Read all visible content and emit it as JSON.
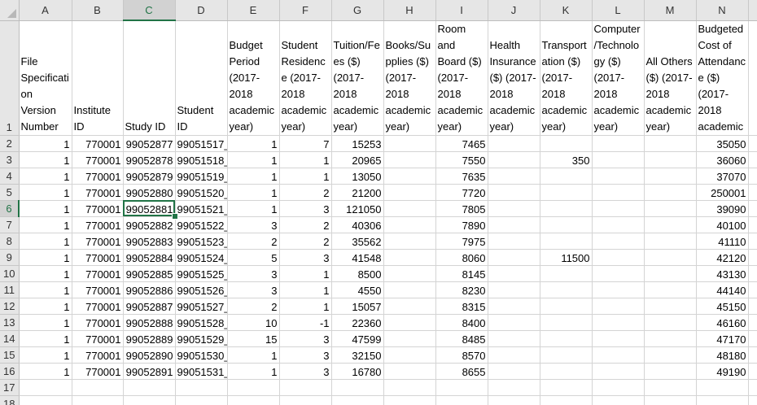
{
  "sheet": {
    "column_letters": [
      "A",
      "B",
      "C",
      "D",
      "E",
      "F",
      "G",
      "H",
      "I",
      "J",
      "K",
      "L",
      "M",
      "N",
      ""
    ],
    "row_numbers": [
      1,
      2,
      3,
      4,
      5,
      6,
      7,
      8,
      9,
      10,
      11,
      12,
      13,
      14,
      15,
      16,
      17,
      18
    ],
    "selected_cell": {
      "column": "C",
      "row": 6
    },
    "accent_color": "#217346",
    "headers": [
      "File Specification Version Number",
      "Institute ID",
      "Study ID",
      "Student ID",
      "Budget Period (2017-2018 academic year)",
      "Student Residence (2017-2018 academic year)",
      "Tuition/Fees ($) (2017-2018 academic year)",
      "Books/Supplies ($) (2017-2018 academic year)",
      "Room and Board ($) (2017-2018 academic year)",
      "Health Insurance ($) (2017-2018 academic year)",
      "Transportation ($) (2017-2018 academic year)",
      "Computer/Technology ($) (2017-2018 academic year)",
      "All Others ($) (2017-2018 academic year)",
      "Budgeted Cost of Attendance ($) (2017-2018 academic"
    ],
    "rows": [
      [
        "1",
        "770001",
        "99052877",
        "99051517_",
        "1",
        "7",
        "15253",
        "",
        "7465",
        "",
        "",
        "",
        "",
        "35050"
      ],
      [
        "1",
        "770001",
        "99052878",
        "99051518_",
        "1",
        "1",
        "20965",
        "",
        "7550",
        "",
        "350",
        "",
        "",
        "36060"
      ],
      [
        "1",
        "770001",
        "99052879",
        "99051519_",
        "1",
        "1",
        "13050",
        "",
        "7635",
        "",
        "",
        "",
        "",
        "37070"
      ],
      [
        "1",
        "770001",
        "99052880",
        "99051520_",
        "1",
        "2",
        "21200",
        "",
        "7720",
        "",
        "",
        "",
        "",
        "250001"
      ],
      [
        "1",
        "770001",
        "99052881",
        "99051521_",
        "1",
        "3",
        "121050",
        "",
        "7805",
        "",
        "",
        "",
        "",
        "39090"
      ],
      [
        "1",
        "770001",
        "99052882",
        "99051522_",
        "3",
        "2",
        "40306",
        "",
        "7890",
        "",
        "",
        "",
        "",
        "40100"
      ],
      [
        "1",
        "770001",
        "99052883",
        "99051523_",
        "2",
        "2",
        "35562",
        "",
        "7975",
        "",
        "",
        "",
        "",
        "41110"
      ],
      [
        "1",
        "770001",
        "99052884",
        "99051524_",
        "5",
        "3",
        "41548",
        "",
        "8060",
        "",
        "11500",
        "",
        "",
        "42120"
      ],
      [
        "1",
        "770001",
        "99052885",
        "99051525_",
        "3",
        "1",
        "8500",
        "",
        "8145",
        "",
        "",
        "",
        "",
        "43130"
      ],
      [
        "1",
        "770001",
        "99052886",
        "99051526_",
        "3",
        "1",
        "4550",
        "",
        "8230",
        "",
        "",
        "",
        "",
        "44140"
      ],
      [
        "1",
        "770001",
        "99052887",
        "99051527_",
        "2",
        "1",
        "15057",
        "",
        "8315",
        "",
        "",
        "",
        "",
        "45150"
      ],
      [
        "1",
        "770001",
        "99052888",
        "99051528_",
        "10",
        "-1",
        "22360",
        "",
        "8400",
        "",
        "",
        "",
        "",
        "46160"
      ],
      [
        "1",
        "770001",
        "99052889",
        "99051529_",
        "15",
        "3",
        "47599",
        "",
        "8485",
        "",
        "",
        "",
        "",
        "47170"
      ],
      [
        "1",
        "770001",
        "99052890",
        "99051530_",
        "1",
        "3",
        "32150",
        "",
        "8570",
        "",
        "",
        "",
        "",
        "48180"
      ],
      [
        "1",
        "770001",
        "99052891",
        "99051531_",
        "1",
        "3",
        "16780",
        "",
        "8655",
        "",
        "",
        "",
        "",
        "49190"
      ],
      [
        "",
        "",
        "",
        "",
        "",
        "",
        "",
        "",
        "",
        "",
        "",
        "",
        "",
        ""
      ],
      [
        "",
        "",
        "",
        "",
        "",
        "",
        "",
        "",
        "",
        "",
        "",
        "",
        "",
        ""
      ]
    ]
  }
}
